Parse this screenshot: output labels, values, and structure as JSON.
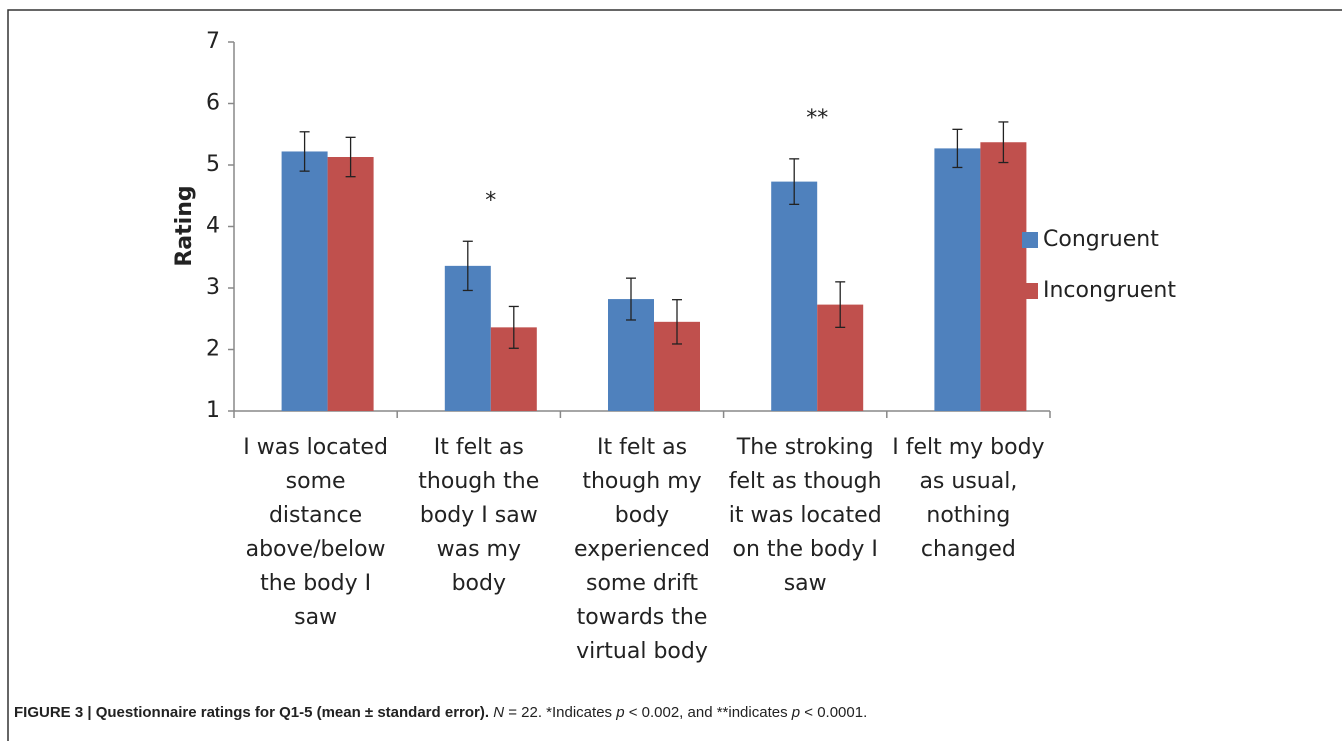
{
  "chart_data": {
    "type": "bar",
    "y_label": "Rating",
    "categories": [
      [
        "I was located",
        "some",
        "distance",
        "above/below",
        "the body I",
        "saw"
      ],
      [
        "It felt as",
        "though the",
        "body I saw",
        "was my",
        "body"
      ],
      [
        "It felt as",
        "though my",
        "body",
        "experienced",
        "some drift",
        "towards the",
        "virtual body"
      ],
      [
        "The stroking",
        "felt as though",
        "it was located",
        "on the body I",
        "saw"
      ],
      [
        "I felt my body",
        "as usual,",
        "nothing",
        "changed"
      ]
    ],
    "series": [
      {
        "name": "Congruent",
        "color": "#4f81bd",
        "values": [
          5.22,
          3.36,
          2.82,
          4.73,
          5.27
        ],
        "errors": [
          0.32,
          0.4,
          0.34,
          0.37,
          0.31
        ]
      },
      {
        "name": "Incongruent",
        "color": "#c0504d",
        "values": [
          5.13,
          2.36,
          2.45,
          2.73,
          5.37
        ],
        "errors": [
          0.32,
          0.34,
          0.36,
          0.37,
          0.33
        ]
      }
    ],
    "annotations": [
      null,
      "*",
      null,
      "**",
      null
    ],
    "ylim": [
      1,
      7
    ],
    "yticks": [
      1,
      2,
      3,
      4,
      5,
      6,
      7
    ],
    "caption_bold": "FIGURE 3 | Questionnaire ratings for Q1-5 (mean ± standard error).",
    "caption_parts": [
      "N",
      " = 22. *Indicates ",
      "p",
      " < 0.002, and **indicates ",
      "p",
      " < 0.0001."
    ]
  }
}
